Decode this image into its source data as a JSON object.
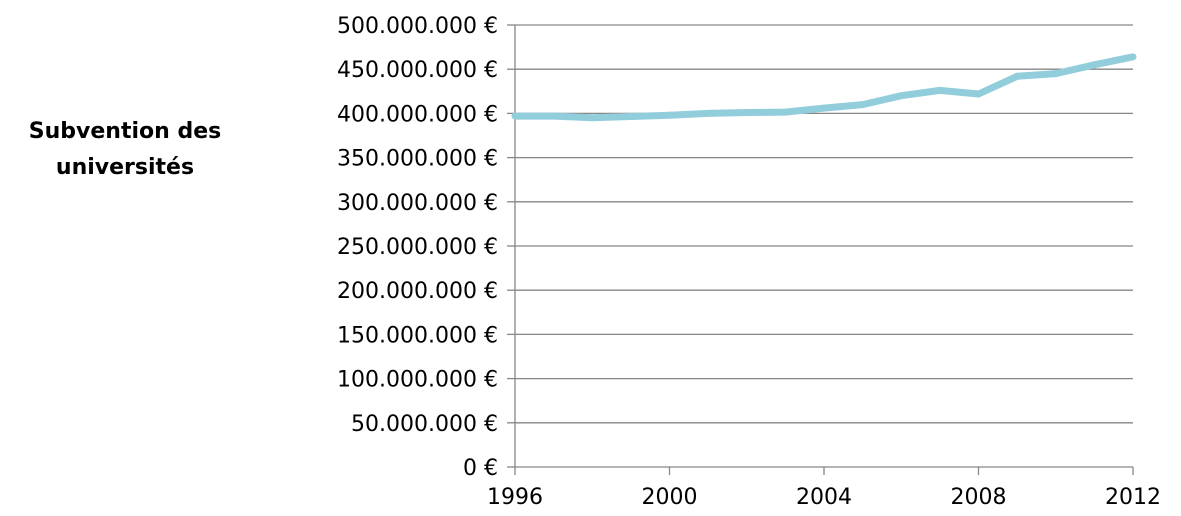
{
  "chart_data": {
    "type": "line",
    "ylabel_lines": [
      "Subvention des",
      "universités"
    ],
    "xlim": [
      1996,
      2012
    ],
    "x_ticks": [
      1996,
      2000,
      2004,
      2008,
      2012
    ],
    "x_tick_labels": [
      "1996",
      "2000",
      "2004",
      "2008",
      "2012"
    ],
    "ylim": [
      0,
      500000000
    ],
    "y_ticks": [
      0,
      50000000,
      100000000,
      150000000,
      200000000,
      250000000,
      300000000,
      350000000,
      400000000,
      450000000,
      500000000
    ],
    "y_tick_labels": [
      "0 €",
      "50.000.000 €",
      "100.000.000 €",
      "150.000.000 €",
      "200.000.000 €",
      "250.000.000 €",
      "300.000.000 €",
      "350.000.000 €",
      "400.000.000 €",
      "450.000.000 €",
      "500.000.000 €"
    ],
    "grid": "horizontal",
    "legend": "none",
    "x": [
      1996,
      1997,
      1998,
      1999,
      2000,
      2001,
      2002,
      2003,
      2004,
      2005,
      2006,
      2007,
      2008,
      2009,
      2010,
      2011,
      2012
    ],
    "series": [
      {
        "values": [
          397000000,
          397000000,
          395000000,
          396500000,
          398000000,
          400000000,
          401000000,
          401500000,
          406000000,
          410000000,
          420000000,
          426000000,
          422000000,
          442000000,
          445000000,
          455000000,
          464000000
        ],
        "color": "#92cddc"
      }
    ],
    "colors": {
      "line": "#92cddc",
      "grid": "#868686",
      "axis": "#868686",
      "text": "#000000"
    }
  }
}
